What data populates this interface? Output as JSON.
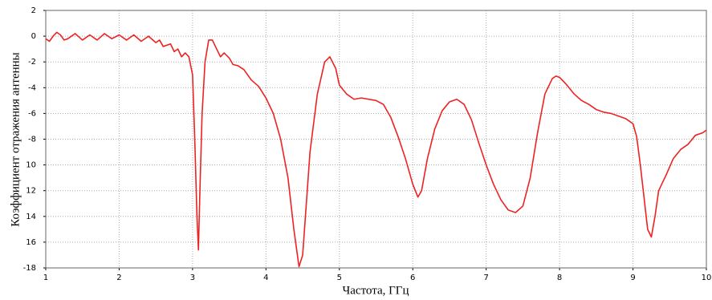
{
  "chart_data": {
    "type": "line",
    "x_label": "Частота, ГГц",
    "y_label": "Коэффициент отражения антенны",
    "color": "#ee2222",
    "grid": true,
    "xlim": [
      1,
      10
    ],
    "ylim": [
      -18,
      2
    ],
    "xticks": [
      1,
      2,
      3,
      4,
      5,
      6,
      7,
      8,
      9,
      10
    ],
    "yticks": [
      2,
      0,
      -2,
      -4,
      -6,
      -8,
      {
        "value": -10,
        "label": "10"
      },
      {
        "value": -12,
        "label": "12"
      },
      {
        "value": -14,
        "label": "14"
      },
      {
        "value": -16,
        "label": "16"
      },
      -18
    ],
    "x": [
      1.0,
      1.05,
      1.1,
      1.15,
      1.2,
      1.25,
      1.3,
      1.4,
      1.5,
      1.6,
      1.7,
      1.8,
      1.9,
      2.0,
      2.1,
      2.2,
      2.3,
      2.4,
      2.5,
      2.55,
      2.6,
      2.7,
      2.75,
      2.8,
      2.85,
      2.9,
      2.95,
      3.0,
      3.03,
      3.06,
      3.08,
      3.1,
      3.13,
      3.17,
      3.22,
      3.27,
      3.32,
      3.38,
      3.43,
      3.5,
      3.55,
      3.62,
      3.7,
      3.8,
      3.9,
      4.0,
      4.1,
      4.2,
      4.3,
      4.38,
      4.45,
      4.5,
      4.55,
      4.6,
      4.7,
      4.8,
      4.87,
      4.95,
      5.0,
      5.1,
      5.2,
      5.3,
      5.5,
      5.6,
      5.7,
      5.8,
      5.9,
      6.0,
      6.07,
      6.12,
      6.2,
      6.3,
      6.4,
      6.5,
      6.6,
      6.7,
      6.8,
      6.9,
      7.0,
      7.1,
      7.2,
      7.3,
      7.4,
      7.5,
      7.6,
      7.7,
      7.8,
      7.9,
      7.95,
      8.0,
      8.1,
      8.2,
      8.3,
      8.4,
      8.5,
      8.6,
      8.7,
      8.8,
      8.9,
      9.0,
      9.05,
      9.1,
      9.15,
      9.2,
      9.25,
      9.3,
      9.35,
      9.45,
      9.55,
      9.65,
      9.75,
      9.85,
      9.95,
      10.0
    ],
    "values": [
      -0.2,
      -0.4,
      0.0,
      0.3,
      0.1,
      -0.3,
      -0.2,
      0.2,
      -0.3,
      0.1,
      -0.3,
      0.2,
      -0.2,
      0.1,
      -0.3,
      0.1,
      -0.4,
      0.0,
      -0.5,
      -0.3,
      -0.8,
      -0.6,
      -1.2,
      -1.0,
      -1.6,
      -1.3,
      -1.6,
      -3.0,
      -8,
      -14,
      -16.6,
      -12,
      -6,
      -2,
      -0.3,
      -0.3,
      -0.9,
      -1.6,
      -1.3,
      -1.7,
      -2.2,
      -2.3,
      -2.6,
      -3.4,
      -3.9,
      -4.8,
      -6.0,
      -8.0,
      -11,
      -15,
      -17.9,
      -17,
      -13,
      -9,
      -4.5,
      -2.0,
      -1.6,
      -2.5,
      -3.8,
      -4.5,
      -4.9,
      -4.8,
      -5.0,
      -5.3,
      -6.3,
      -7.8,
      -9.5,
      -11.5,
      -12.5,
      -12.0,
      -9.5,
      -7.2,
      -5.8,
      -5.1,
      -4.9,
      -5.3,
      -6.5,
      -8.3,
      -10.0,
      -11.5,
      -12.7,
      -13.5,
      -13.7,
      -13.2,
      -11,
      -7.5,
      -4.5,
      -3.3,
      -3.1,
      -3.2,
      -3.8,
      -4.5,
      -5.0,
      -5.3,
      -5.7,
      -5.9,
      -6.0,
      -6.2,
      -6.4,
      -6.8,
      -7.8,
      -10,
      -12.5,
      -15,
      -15.6,
      -14,
      -12,
      -10.8,
      -9.5,
      -8.8,
      -8.4,
      -7.7,
      -7.5,
      -7.3
    ]
  }
}
